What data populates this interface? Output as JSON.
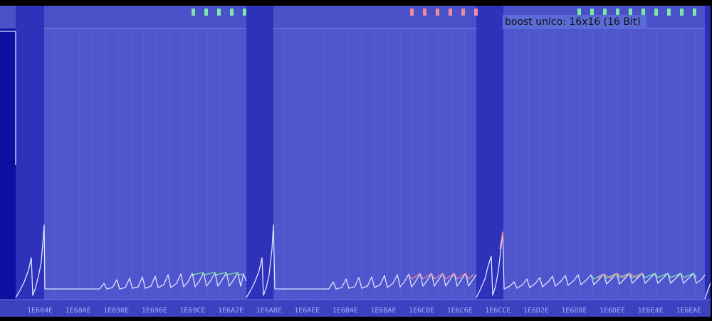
{
  "colors": {
    "background": "#000000",
    "plot": "#4f55cc",
    "bank_band": "#2a2fb8",
    "edge_band": "#0c0fa0",
    "grid": "#6a70dc",
    "trace": "#dfe3ff",
    "marker_green": "#7ee6a8",
    "marker_red": "#ee8aa0",
    "axis_text": "#9fb0ff"
  },
  "tooltip": {
    "text": "boost unico: 16x16 (16 Bit)"
  },
  "x_axis": {
    "labels": [
      "1E684E",
      "1E68AE",
      "1E690E",
      "1E696E",
      "1E69CE",
      "1E6A2E",
      "1E6A8E",
      "1E6AEE",
      "1E6B4E",
      "1E6BAE",
      "1E6C0E",
      "1E6C6E",
      "1E6CCE",
      "1E6D2E",
      "1E6D8E",
      "1E6DEE",
      "1E6E4E",
      "1E6EAE"
    ]
  },
  "markers": {
    "green_group_1": 5,
    "red_group": 6,
    "green_group_2": 10
  }
}
